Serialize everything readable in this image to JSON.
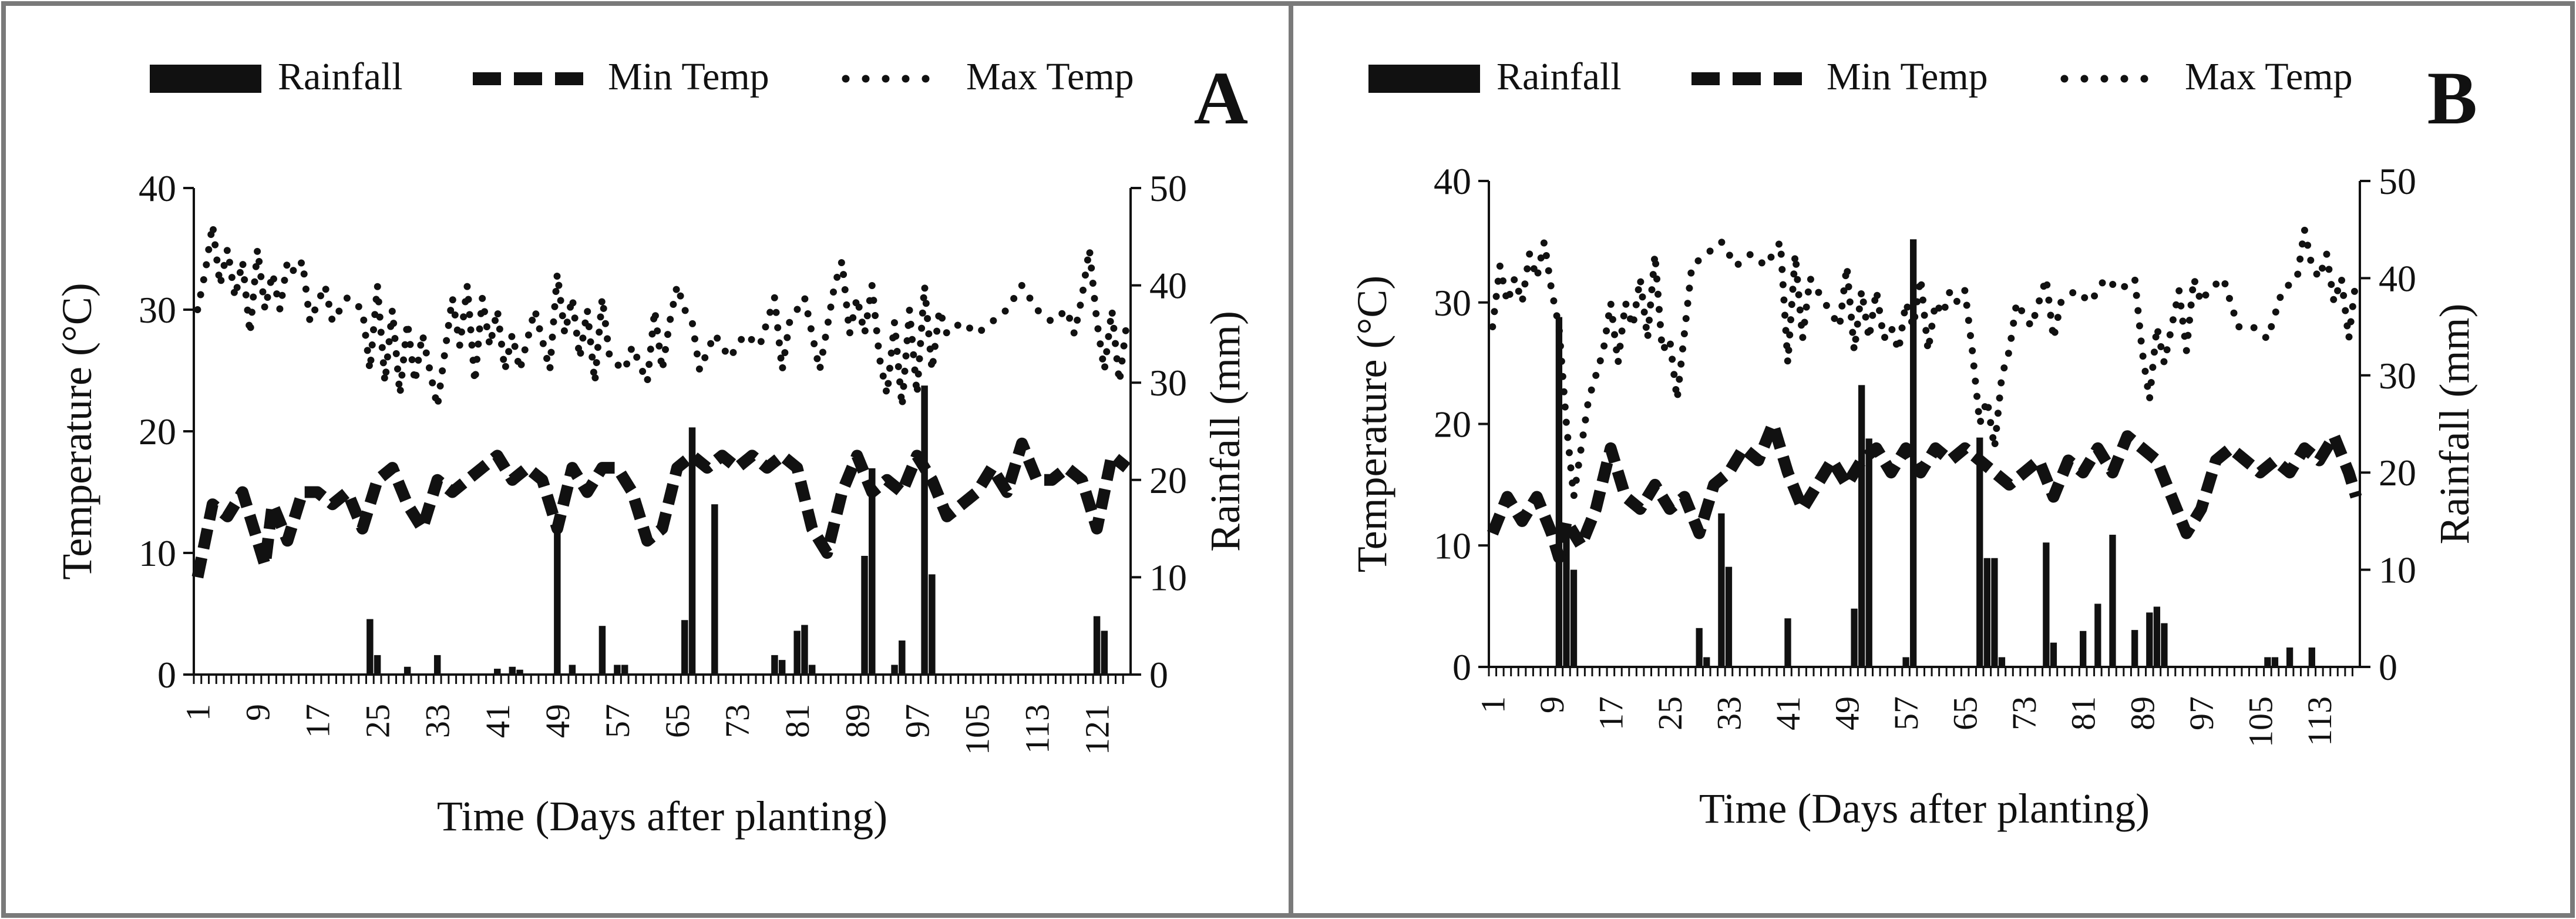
{
  "colors": {
    "ink": "#111111",
    "frame": "#7a7a7a",
    "background": "#ffffff"
  },
  "legend": {
    "rainfall": "Rainfall",
    "min_temp": "Min Temp",
    "max_temp": "Max Temp"
  },
  "chart_data": [
    {
      "panel": "A",
      "type": "bar+line",
      "xlabel": "Time (Days after planting)",
      "ylabel_left": "Temperature (°C)",
      "ylabel_right": "Rainfall (mm)",
      "ylim_left": [
        0,
        40
      ],
      "ylim_right": [
        0,
        50
      ],
      "yticks_left": [
        "0",
        "10",
        "20",
        "30",
        "40"
      ],
      "yticks_right": [
        "0",
        "10",
        "20",
        "30",
        "40",
        "50"
      ],
      "xticks": [
        "1",
        "9",
        "17",
        "25",
        "33",
        "41",
        "49",
        "57",
        "65",
        "73",
        "81",
        "89",
        "97",
        "105",
        "113",
        "121"
      ],
      "day_count": 125,
      "series": [
        {
          "name": "Rainfall",
          "axis": "right",
          "style": "bar",
          "days": [
            24,
            25,
            29,
            33,
            41,
            43,
            44,
            49,
            51,
            55,
            57,
            58,
            66,
            67,
            70,
            78,
            79,
            81,
            82,
            83,
            90,
            91,
            94,
            95,
            98,
            99,
            121,
            122
          ],
          "values": [
            5.7,
            2,
            0.8,
            2,
            0.6,
            0.8,
            0.5,
            15.5,
            1,
            5,
            1,
            1,
            5.6,
            25.4,
            17.5,
            2,
            1.5,
            4.5,
            5.1,
            1,
            12.2,
            21.2,
            1,
            3.5,
            29.7,
            10.3,
            6,
            4.5
          ]
        },
        {
          "name": "Min Temp",
          "axis": "left",
          "style": "dashed",
          "days": [
            1,
            3,
            5,
            7,
            9,
            10,
            11,
            13,
            15,
            17,
            19,
            21,
            23,
            25,
            27,
            29,
            31,
            33,
            35,
            37,
            39,
            41,
            43,
            45,
            47,
            49,
            51,
            53,
            55,
            57,
            59,
            61,
            63,
            65,
            67,
            69,
            71,
            73,
            75,
            77,
            79,
            81,
            83,
            85,
            87,
            89,
            91,
            93,
            95,
            97,
            99,
            101,
            103,
            105,
            107,
            109,
            111,
            113,
            115,
            117,
            119,
            121,
            123,
            125
          ],
          "values": [
            8,
            14,
            13,
            15,
            11,
            9,
            14,
            11,
            15,
            15,
            14,
            15,
            12,
            16,
            17,
            14,
            12,
            16,
            15,
            16,
            17,
            18,
            16,
            17,
            16,
            12,
            17,
            15,
            17,
            17,
            15,
            11,
            12,
            17,
            18,
            17,
            18,
            17,
            18,
            17,
            18,
            17,
            12,
            10,
            15,
            18,
            15,
            16,
            15,
            18,
            16,
            13,
            14,
            15,
            17,
            15,
            19,
            16,
            16,
            17,
            16,
            12,
            18,
            17
          ]
        },
        {
          "name": "Max Temp",
          "axis": "left",
          "style": "dotted",
          "days": [
            1,
            2,
            3,
            4,
            5,
            6,
            7,
            8,
            9,
            10,
            11,
            12,
            13,
            14,
            15,
            16,
            18,
            19,
            21,
            23,
            24,
            25,
            26,
            27,
            28,
            29,
            30,
            31,
            32,
            33,
            35,
            36,
            37,
            38,
            39,
            40,
            41,
            42,
            43,
            44,
            46,
            48,
            49,
            50,
            51,
            52,
            53,
            54,
            55,
            56,
            58,
            59,
            61,
            62,
            63,
            64,
            65,
            66,
            67,
            68,
            70,
            72,
            74,
            76,
            78,
            79,
            80,
            82,
            83,
            84,
            86,
            87,
            88,
            89,
            90,
            91,
            92,
            93,
            94,
            95,
            96,
            97,
            98,
            99,
            100,
            101,
            103,
            105,
            107,
            109,
            111,
            113,
            115,
            117,
            118,
            119,
            120,
            121,
            122,
            123,
            124,
            125
          ],
          "values": [
            30,
            33,
            37,
            32,
            35,
            31,
            34,
            28,
            35,
            30,
            33,
            30,
            34,
            33,
            34,
            29,
            32,
            29,
            31,
            30,
            25,
            32,
            24,
            30,
            23,
            29,
            24,
            28,
            25,
            22,
            31,
            27,
            32,
            24,
            31,
            27,
            30,
            25,
            28,
            25,
            30,
            25,
            33,
            28,
            31,
            26,
            30,
            24,
            31,
            26,
            25,
            27,
            24,
            30,
            25,
            29,
            32,
            30,
            29,
            25,
            28,
            26,
            28,
            27,
            31,
            25,
            29,
            31,
            28,
            25,
            32,
            34,
            28,
            31,
            28,
            32,
            26,
            23,
            29,
            22,
            30,
            23,
            32,
            25,
            30,
            28,
            29,
            28,
            29,
            30,
            32,
            30,
            29,
            30,
            28,
            31,
            35,
            29,
            25,
            30,
            24,
            29
          ]
        }
      ]
    },
    {
      "panel": "B",
      "type": "bar+line",
      "xlabel": "Time (Days after planting)",
      "ylabel_left": "Temperature (°C)",
      "ylabel_right": "Rainfall (mm)",
      "ylim_left": [
        0,
        40
      ],
      "ylim_right": [
        0,
        50
      ],
      "yticks_left": [
        "0",
        "10",
        "20",
        "30",
        "40"
      ],
      "yticks_right": [
        "0",
        "10",
        "20",
        "30",
        "40",
        "50"
      ],
      "xticks": [
        "1",
        "9",
        "17",
        "25",
        "33",
        "41",
        "49",
        "57",
        "65",
        "73",
        "81",
        "89",
        "97",
        "105",
        "113"
      ],
      "day_count": 118,
      "series": [
        {
          "name": "Rainfall",
          "axis": "right",
          "style": "bar",
          "days": [
            10,
            11,
            12,
            29,
            30,
            32,
            33,
            41,
            50,
            51,
            52,
            57,
            58,
            67,
            68,
            69,
            70,
            76,
            77,
            81,
            83,
            85,
            88,
            90,
            91,
            92,
            106,
            107,
            109,
            112
          ],
          "values": [
            36,
            13.5,
            10,
            4,
            1,
            15.8,
            10.3,
            5,
            6,
            29,
            23.5,
            1,
            44,
            23.6,
            11.2,
            11.2,
            1,
            12.8,
            2.5,
            3.7,
            6.5,
            13.6,
            3.8,
            5.6,
            6.2,
            4.5,
            1,
            1,
            2,
            2
          ]
        },
        {
          "name": "Min Temp",
          "axis": "left",
          "style": "dashed",
          "days": [
            1,
            3,
            5,
            7,
            9,
            10,
            11,
            13,
            15,
            17,
            19,
            21,
            23,
            25,
            27,
            29,
            31,
            33,
            35,
            37,
            39,
            41,
            43,
            45,
            47,
            49,
            51,
            53,
            55,
            57,
            59,
            61,
            63,
            65,
            67,
            69,
            71,
            73,
            75,
            77,
            79,
            81,
            83,
            85,
            87,
            89,
            91,
            93,
            95,
            97,
            99,
            101,
            103,
            105,
            107,
            109,
            111,
            113,
            115,
            117,
            118
          ],
          "values": [
            11,
            14,
            12,
            14,
            11,
            9,
            12,
            10,
            13,
            18,
            14,
            13,
            15,
            13,
            14,
            11,
            15,
            16,
            18,
            17,
            20,
            16,
            13,
            15,
            17,
            15,
            17,
            18,
            16,
            18,
            16,
            18,
            17,
            18,
            17,
            16,
            15,
            16,
            17,
            14,
            17,
            16,
            18,
            16,
            19,
            18,
            17,
            14,
            11,
            13,
            17,
            18,
            17,
            16,
            17,
            16,
            18,
            17,
            19,
            16,
            14
          ]
        },
        {
          "name": "Max Temp",
          "axis": "left",
          "style": "dotted",
          "days": [
            1,
            2,
            3,
            4,
            5,
            6,
            7,
            8,
            9,
            10,
            11,
            12,
            14,
            16,
            17,
            18,
            19,
            20,
            21,
            22,
            23,
            24,
            25,
            26,
            28,
            30,
            32,
            34,
            36,
            38,
            40,
            41,
            42,
            43,
            44,
            46,
            48,
            49,
            50,
            51,
            52,
            53,
            54,
            55,
            56,
            57,
            58,
            59,
            60,
            61,
            62,
            63,
            64,
            65,
            66,
            67,
            68,
            69,
            70,
            71,
            72,
            74,
            76,
            77,
            78,
            80,
            82,
            84,
            86,
            88,
            89,
            90,
            91,
            92,
            94,
            95,
            96,
            97,
            98,
            100,
            102,
            104,
            106,
            108,
            110,
            111,
            112,
            113,
            114,
            115,
            116,
            117,
            118
          ],
          "values": [
            28,
            33,
            30,
            32,
            30,
            34,
            32,
            35,
            31,
            28,
            20,
            14,
            22,
            26,
            30,
            25,
            30,
            28,
            32,
            27,
            34,
            26,
            27,
            22,
            33,
            34,
            35,
            33,
            34,
            33,
            35,
            25,
            34,
            27,
            32,
            30,
            28,
            33,
            26,
            31,
            27,
            31,
            27,
            28,
            26,
            30,
            28,
            32,
            26,
            30,
            29,
            31,
            30,
            31,
            26,
            20,
            22,
            18,
            24,
            26,
            30,
            28,
            32,
            27,
            30,
            31,
            30,
            32,
            31,
            32,
            26,
            22,
            28,
            25,
            31,
            26,
            32,
            30,
            31,
            32,
            28,
            28,
            27,
            31,
            32,
            36,
            33,
            32,
            34,
            30,
            32,
            27,
            32
          ]
        }
      ]
    }
  ]
}
